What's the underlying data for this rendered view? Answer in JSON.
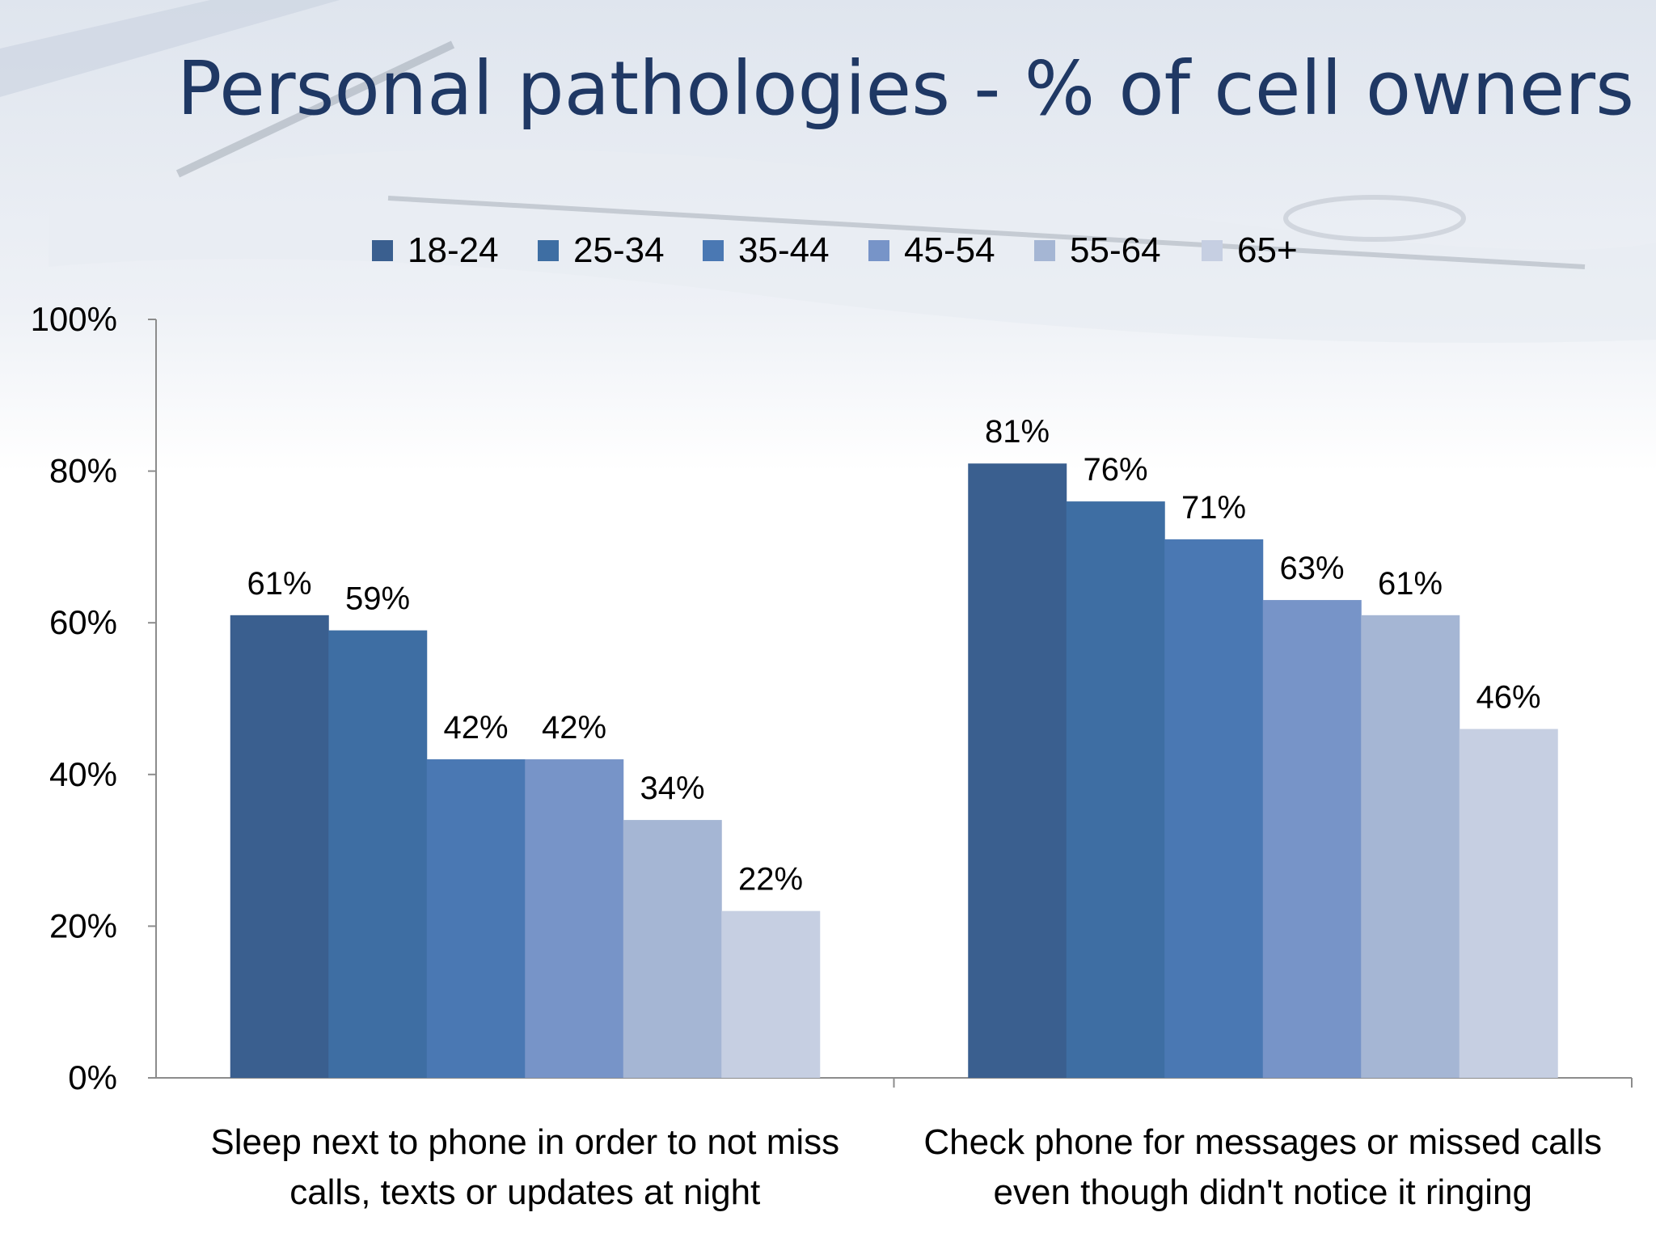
{
  "title": "Personal pathologies - % of cell owners",
  "chart_data": {
    "type": "bar",
    "title": "Personal pathologies - % of cell owners",
    "categories": [
      [
        "Sleep next to phone in order to not miss",
        "calls, texts or updates at night"
      ],
      [
        "Check phone for messages or missed calls",
        "even though didn't notice it ringing"
      ]
    ],
    "series": [
      {
        "name": "18-24",
        "color": "#3a5f8f",
        "values": [
          61,
          81
        ]
      },
      {
        "name": "25-34",
        "color": "#3e6ea3",
        "values": [
          59,
          76
        ]
      },
      {
        "name": "35-44",
        "color": "#4a78b3",
        "values": [
          42,
          71
        ]
      },
      {
        "name": "45-54",
        "color": "#7794c8",
        "values": [
          42,
          63
        ]
      },
      {
        "name": "55-64",
        "color": "#a5b6d4",
        "values": [
          34,
          61
        ]
      },
      {
        "name": "65+",
        "color": "#c6cfe2",
        "values": [
          22,
          46
        ]
      }
    ],
    "ylim": [
      0,
      100
    ],
    "yticks": [
      "0%",
      "20%",
      "40%",
      "60%",
      "80%",
      "100%"
    ],
    "value_suffix": "%",
    "legend": "top",
    "grid": false
  }
}
